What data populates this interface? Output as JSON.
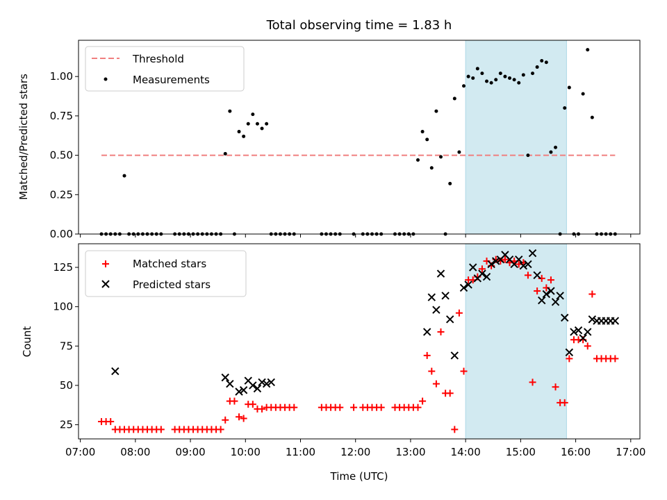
{
  "chart_data": {
    "title": "Total observing time = 1.83 h",
    "xlabel": "Time (UTC)",
    "highlight_span": [
      "14:00",
      "15:50"
    ],
    "x_ticks": [
      "07:00",
      "08:00",
      "09:00",
      "10:00",
      "11:00",
      "12:00",
      "13:00",
      "14:00",
      "15:00",
      "16:00",
      "17:00"
    ],
    "x_range": [
      "06:58",
      "17:10"
    ],
    "colors": {
      "threshold": "#f07f7f",
      "span": "#add8e6",
      "matched": "#ff0000",
      "predicted": "#000000",
      "measurement": "#000000"
    },
    "panels": [
      {
        "type": "scatter",
        "ylabel": "Matched/Predicted stars",
        "ylim": [
          0,
          1.23
        ],
        "y_ticks": [
          "0.00",
          "0.25",
          "0.50",
          "0.75",
          "1.00"
        ],
        "y_tick_values": [
          0,
          0.25,
          0.5,
          0.75,
          1.0
        ],
        "legend": [
          "Threshold",
          "Measurements"
        ],
        "legend_position": "upper-left",
        "threshold": {
          "name": "Threshold",
          "x": [
            "07:23",
            "16:43"
          ],
          "y": 0.5
        },
        "measurements": {
          "name": "Measurements",
          "x": [
            "07:23",
            "07:28",
            "07:33",
            "07:38",
            "07:43",
            "07:48",
            "07:53",
            "07:58",
            "08:03",
            "08:08",
            "08:13",
            "08:18",
            "08:23",
            "08:28",
            "08:43",
            "08:48",
            "08:53",
            "08:58",
            "09:03",
            "09:08",
            "09:13",
            "09:18",
            "09:23",
            "09:28",
            "09:33",
            "09:38",
            "09:43",
            "09:48",
            "09:53",
            "09:58",
            "10:03",
            "10:08",
            "10:13",
            "10:18",
            "10:23",
            "10:28",
            "10:33",
            "10:38",
            "10:43",
            "10:48",
            "10:53",
            "11:23",
            "11:28",
            "11:33",
            "11:38",
            "11:43",
            "11:58",
            "12:08",
            "12:13",
            "12:18",
            "12:23",
            "12:28",
            "12:43",
            "12:48",
            "12:53",
            "12:58",
            "13:03",
            "13:08",
            "13:13",
            "13:18",
            "13:23",
            "13:28",
            "13:33",
            "13:38",
            "13:43",
            "13:48",
            "13:53",
            "13:58",
            "14:03",
            "14:08",
            "14:13",
            "14:18",
            "14:23",
            "14:28",
            "14:33",
            "14:38",
            "14:43",
            "14:48",
            "14:53",
            "14:58",
            "15:03",
            "15:08",
            "15:13",
            "15:18",
            "15:23",
            "15:28",
            "15:33",
            "15:38",
            "15:43",
            "15:48",
            "15:53",
            "15:58",
            "16:03",
            "16:08",
            "16:13",
            "16:18",
            "16:23",
            "16:28",
            "16:33",
            "16:38",
            "16:43"
          ],
          "y": [
            0,
            0,
            0,
            0,
            0,
            0.37,
            0,
            0,
            0,
            0,
            0,
            0,
            0,
            0,
            0,
            0,
            0,
            0,
            0,
            0,
            0,
            0,
            0,
            0,
            0,
            0.51,
            0.78,
            0,
            0.65,
            0.62,
            0.7,
            0.76,
            0.7,
            0.67,
            0.7,
            0,
            0,
            0,
            0,
            0,
            0,
            0,
            0,
            0,
            0,
            0,
            0,
            0,
            0,
            0,
            0,
            0,
            0,
            0,
            0,
            0,
            0,
            0.47,
            0.65,
            0.6,
            0.42,
            0.78,
            0.49,
            0,
            0.32,
            0.86,
            0.52,
            0.94,
            1.0,
            0.99,
            1.05,
            1.02,
            0.97,
            0.96,
            0.98,
            1.02,
            1.0,
            0.99,
            0.98,
            0.96,
            1.01,
            0.5,
            1.02,
            1.06,
            1.1,
            1.09,
            0.52,
            0.55,
            0,
            0.8,
            0.93,
            0,
            0,
            0.89,
            1.17,
            0.74,
            0,
            0,
            0,
            0,
            0
          ]
        }
      },
      {
        "type": "scatter",
        "ylabel": "Count",
        "ylim": [
          16,
          140
        ],
        "y_ticks": [
          "25",
          "50",
          "75",
          "100",
          "125"
        ],
        "y_tick_values": [
          25,
          50,
          75,
          100,
          125
        ],
        "legend": [
          "Matched stars",
          "Predicted stars"
        ],
        "legend_position": "upper-left",
        "series": [
          {
            "name": "Matched stars",
            "marker": "+",
            "x": [
              "07:23",
              "07:28",
              "07:33",
              "07:38",
              "07:43",
              "07:48",
              "07:53",
              "07:58",
              "08:03",
              "08:08",
              "08:13",
              "08:18",
              "08:23",
              "08:28",
              "08:43",
              "08:48",
              "08:53",
              "08:58",
              "09:03",
              "09:08",
              "09:13",
              "09:18",
              "09:23",
              "09:28",
              "09:33",
              "09:38",
              "09:43",
              "09:48",
              "09:53",
              "09:58",
              "10:03",
              "10:08",
              "10:13",
              "10:18",
              "10:23",
              "10:28",
              "10:33",
              "10:38",
              "10:43",
              "10:48",
              "10:53",
              "11:23",
              "11:28",
              "11:33",
              "11:38",
              "11:43",
              "11:58",
              "12:08",
              "12:13",
              "12:18",
              "12:23",
              "12:28",
              "12:43",
              "12:48",
              "12:53",
              "12:58",
              "13:03",
              "13:08",
              "13:13",
              "13:18",
              "13:23",
              "13:28",
              "13:33",
              "13:38",
              "13:43",
              "13:48",
              "13:53",
              "13:58",
              "14:03",
              "14:08",
              "14:13",
              "14:18",
              "14:23",
              "14:28",
              "14:33",
              "14:38",
              "14:43",
              "14:48",
              "14:53",
              "14:58",
              "15:03",
              "15:08",
              "15:13",
              "15:18",
              "15:23",
              "15:28",
              "15:33",
              "15:38",
              "15:43",
              "15:48",
              "15:53",
              "15:58",
              "16:03",
              "16:08",
              "16:13",
              "16:18",
              "16:23",
              "16:28",
              "16:33",
              "16:38",
              "16:43"
            ],
            "y": [
              27,
              27,
              27,
              22,
              22,
              22,
              22,
              22,
              22,
              22,
              22,
              22,
              22,
              22,
              22,
              22,
              22,
              22,
              22,
              22,
              22,
              22,
              22,
              22,
              22,
              28,
              40,
              40,
              30,
              29,
              38,
              38,
              35,
              35,
              36,
              36,
              36,
              36,
              36,
              36,
              36,
              36,
              36,
              36,
              36,
              36,
              36,
              36,
              36,
              36,
              36,
              36,
              36,
              36,
              36,
              36,
              36,
              36,
              40,
              69,
              59,
              51,
              84,
              45,
              45,
              22,
              96,
              59,
              117,
              117,
              119,
              124,
              129,
              126,
              130,
              129,
              130,
              128,
              129,
              127,
              128,
              120,
              52,
              110,
              118,
              112,
              117,
              49,
              39,
              39,
              67,
              79,
              79,
              79,
              75,
              108,
              67,
              67,
              67,
              67,
              67
            ]
          },
          {
            "name": "Predicted stars",
            "marker": "x",
            "x": [
              "07:38",
              "09:38",
              "09:43",
              "09:53",
              "09:58",
              "10:03",
              "10:08",
              "10:13",
              "10:18",
              "10:23",
              "10:28",
              "13:18",
              "13:23",
              "13:28",
              "13:33",
              "13:38",
              "13:43",
              "13:48",
              "13:58",
              "14:03",
              "14:08",
              "14:13",
              "14:18",
              "14:23",
              "14:28",
              "14:33",
              "14:38",
              "14:43",
              "14:48",
              "14:53",
              "14:58",
              "15:03",
              "15:08",
              "15:13",
              "15:18",
              "15:23",
              "15:28",
              "15:33",
              "15:38",
              "15:43",
              "15:48",
              "15:53",
              "15:58",
              "16:03",
              "16:08",
              "16:13",
              "16:18",
              "16:23",
              "16:28",
              "16:33",
              "16:38",
              "16:43"
            ],
            "y": [
              59,
              55,
              51,
              46,
              47,
              53,
              50,
              48,
              52,
              51,
              52,
              84,
              106,
              98,
              121,
              107,
              92,
              69,
              112,
              114,
              125,
              118,
              121,
              119,
              127,
              129,
              130,
              133,
              130,
              127,
              130,
              126,
              127,
              134,
              120,
              104,
              108,
              110,
              103,
              107,
              93,
              71,
              84,
              85,
              80,
              84,
              92,
              91,
              91,
              91,
              91,
              91
            ]
          }
        ]
      }
    ]
  }
}
